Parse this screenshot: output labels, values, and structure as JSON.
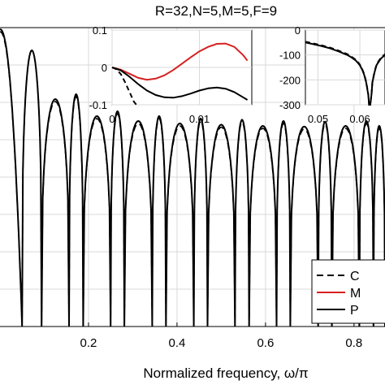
{
  "chart_data": [
    {
      "type": "line",
      "title": "R=32,N=5,M=5,F=9",
      "xlabel": "Normalized frequency, ω/π",
      "ylabel": "",
      "xlim": [
        0.0,
        0.87
      ],
      "x_ticks": [
        0.2,
        0.4,
        0.6,
        0.8
      ],
      "x_tick_labels": [
        "0.2",
        "0.4",
        "0.6",
        "0.8"
      ],
      "grid": true,
      "legend": {
        "placement": "bottom-right",
        "entries": [
          {
            "label": "C",
            "color": "#000000",
            "style": "dashed"
          },
          {
            "label": "M",
            "color": "#d62020",
            "style": "solid"
          },
          {
            "label": "P",
            "color": "#000000",
            "style": "solid"
          }
        ]
      },
      "null_frequencies": [
        0.05,
        0.094,
        0.156,
        0.188,
        0.25,
        0.281,
        0.344,
        0.375,
        0.438,
        0.469,
        0.531,
        0.563,
        0.625,
        0.656,
        0.719,
        0.75,
        0.812,
        0.844
      ],
      "lobe_peak_frequencies": [
        0.117,
        0.219,
        0.312,
        0.406,
        0.5,
        0.594,
        0.688,
        0.781,
        0.866
      ],
      "lobe_peaks_P_relative": [
        0.0,
        -0.36,
        -0.5,
        -0.54,
        -0.56,
        -0.57,
        -0.58,
        -0.585,
        -0.58
      ],
      "lobe_peaks_C_relative": [
        0.0,
        -0.38,
        -0.52,
        -0.56,
        -0.58,
        -0.59,
        -0.6,
        -0.605,
        -0.6
      ],
      "series": [
        {
          "name": "C",
          "color": "#000000",
          "style": "dashed"
        },
        {
          "name": "M",
          "color": "#d62020",
          "style": "solid"
        },
        {
          "name": "P",
          "color": "#000000",
          "style": "solid"
        }
      ]
    },
    {
      "type": "line",
      "inset": "passband",
      "xlim": [
        0.0,
        0.016
      ],
      "ylim": [
        -0.1,
        0.1
      ],
      "x_ticks": [
        0,
        0.01
      ],
      "x_tick_labels": [
        "0",
        "0.01"
      ],
      "y_ticks": [
        0.1,
        0,
        -0.1
      ],
      "y_tick_labels": [
        "0.1",
        "0",
        "-0.1"
      ],
      "series": [
        {
          "name": "C",
          "color": "#000000",
          "style": "dashed",
          "x": [
            0,
            0.0005,
            0.001,
            0.0015,
            0.002,
            0.0025,
            0.003
          ],
          "y": [
            0,
            -0.005,
            -0.018,
            -0.04,
            -0.066,
            -0.092,
            -0.118
          ]
        },
        {
          "name": "M",
          "color": "#d62020",
          "style": "solid",
          "x": [
            0,
            0.001,
            0.002,
            0.003,
            0.004,
            0.005,
            0.006,
            0.007,
            0.008,
            0.009,
            0.01,
            0.011,
            0.012,
            0.013,
            0.014,
            0.015,
            0.0155
          ],
          "y": [
            0,
            -0.006,
            -0.017,
            -0.028,
            -0.033,
            -0.03,
            -0.021,
            -0.007,
            0.01,
            0.027,
            0.043,
            0.055,
            0.063,
            0.064,
            0.055,
            0.033,
            0.018
          ]
        },
        {
          "name": "P",
          "color": "#000000",
          "style": "solid",
          "x": [
            0,
            0.001,
            0.002,
            0.003,
            0.004,
            0.005,
            0.006,
            0.007,
            0.008,
            0.009,
            0.01,
            0.011,
            0.012,
            0.013,
            0.014,
            0.015,
            0.0155
          ],
          "y": [
            0,
            -0.008,
            -0.025,
            -0.045,
            -0.062,
            -0.074,
            -0.08,
            -0.081,
            -0.077,
            -0.07,
            -0.062,
            -0.056,
            -0.054,
            -0.057,
            -0.066,
            -0.08,
            -0.087
          ]
        }
      ]
    },
    {
      "type": "line",
      "inset": "stopband",
      "xlim": [
        0.047,
        0.066
      ],
      "ylim": [
        -300,
        0
      ],
      "x_ticks": [
        0.05,
        0.06
      ],
      "x_tick_labels": [
        "0.05",
        "0.06"
      ],
      "y_ticks": [
        0,
        -100,
        -200,
        -300
      ],
      "y_tick_labels": [
        "0",
        "-100",
        "-200",
        "-300"
      ],
      "series": [
        {
          "name": "P",
          "color": "#000000",
          "style": "solid",
          "x": [
            0.047,
            0.049,
            0.051,
            0.053,
            0.055,
            0.057,
            0.058,
            0.059,
            0.0595,
            0.06,
            0.0605,
            0.061,
            0.0615,
            0.062,
            0.0622,
            0.0625,
            0.0628,
            0.063,
            0.0635,
            0.064,
            0.065,
            0.066
          ],
          "y": [
            -50,
            -57,
            -65,
            -74,
            -86,
            -100,
            -110,
            -122,
            -131,
            -142,
            -157,
            -178,
            -210,
            -260,
            -300,
            -300,
            -255,
            -210,
            -170,
            -140,
            -115,
            -100
          ]
        },
        {
          "name": "C",
          "color": "#000000",
          "style": "dashed",
          "x": [
            0.047,
            0.049,
            0.051,
            0.053,
            0.055,
            0.057,
            0.058,
            0.059,
            0.0595,
            0.06,
            0.0605,
            0.061,
            0.0615,
            0.062,
            0.0622,
            0.0625,
            0.0628,
            0.063,
            0.0635,
            0.064,
            0.065,
            0.066
          ],
          "y": [
            -47,
            -54,
            -62,
            -71,
            -83,
            -97,
            -107,
            -119,
            -128,
            -139,
            -154,
            -175,
            -207,
            -257,
            -300,
            -300,
            -252,
            -207,
            -167,
            -137,
            -112,
            -97
          ]
        }
      ]
    }
  ]
}
